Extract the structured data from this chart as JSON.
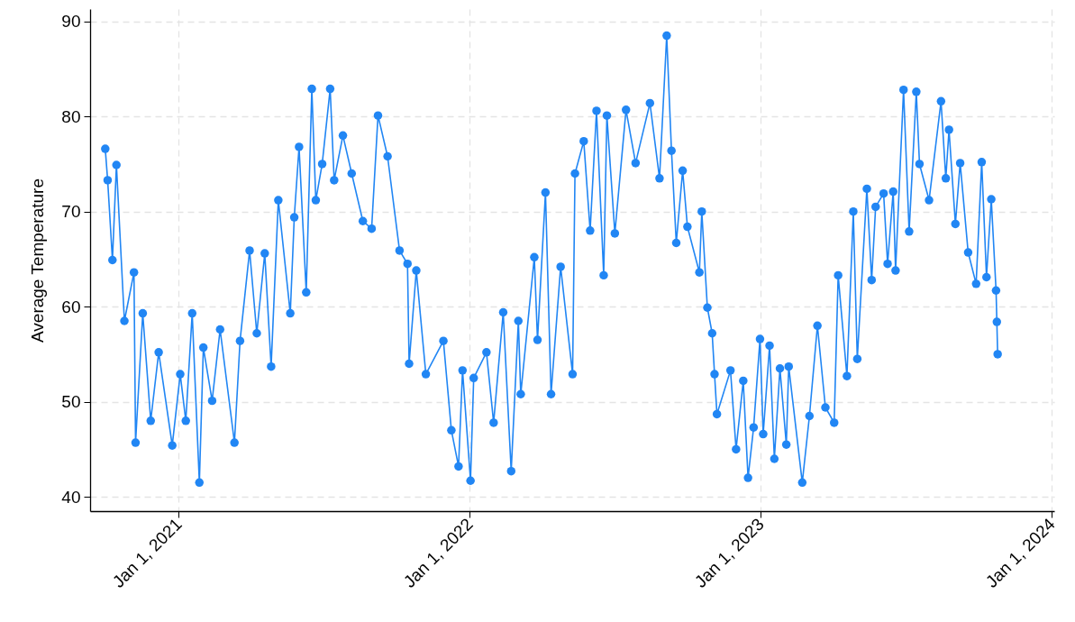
{
  "chart_data": {
    "type": "line",
    "ylabel": "Average Temperature",
    "x": [
      "2020-10-01",
      "2020-10-04",
      "2020-10-10",
      "2020-10-15",
      "2020-10-25",
      "2020-11-06",
      "2020-11-08",
      "2020-11-17",
      "2020-11-27",
      "2020-12-07",
      "2020-12-24",
      "2021-01-03",
      "2021-01-10",
      "2021-01-18",
      "2021-01-27",
      "2021-02-01",
      "2021-02-12",
      "2021-02-22",
      "2021-03-12",
      "2021-03-19",
      "2021-03-31",
      "2021-04-09",
      "2021-04-19",
      "2021-04-27",
      "2021-05-06",
      "2021-05-21",
      "2021-05-26",
      "2021-06-01",
      "2021-06-10",
      "2021-06-17",
      "2021-06-22",
      "2021-06-30",
      "2021-07-10",
      "2021-07-15",
      "2021-07-26",
      "2021-08-06",
      "2021-08-20",
      "2021-08-31",
      "2021-09-08",
      "2021-09-20",
      "2021-10-05",
      "2021-10-15",
      "2021-10-17",
      "2021-10-26",
      "2021-11-07",
      "2021-11-29",
      "2021-12-09",
      "2021-12-18",
      "2021-12-23",
      "2022-01-02",
      "2022-01-06",
      "2022-01-22",
      "2022-01-31",
      "2022-02-12",
      "2022-02-22",
      "2022-03-03",
      "2022-03-06",
      "2022-03-23",
      "2022-03-27",
      "2022-04-06",
      "2022-04-13",
      "2022-04-25",
      "2022-05-10",
      "2022-05-13",
      "2022-05-24",
      "2022-06-01",
      "2022-06-09",
      "2022-06-18",
      "2022-06-22",
      "2022-07-02",
      "2022-07-16",
      "2022-07-28",
      "2022-08-15",
      "2022-08-27",
      "2022-09-05",
      "2022-09-11",
      "2022-09-17",
      "2022-09-25",
      "2022-10-01",
      "2022-10-16",
      "2022-10-19",
      "2022-10-26",
      "2022-11-01",
      "2022-11-04",
      "2022-11-07",
      "2022-11-24",
      "2022-12-01",
      "2022-12-10",
      "2022-12-16",
      "2022-12-23",
      "2022-12-31",
      "2023-01-04",
      "2023-01-12",
      "2023-01-18",
      "2023-01-25",
      "2023-02-02",
      "2023-02-05",
      "2023-02-22",
      "2023-03-03",
      "2023-03-13",
      "2023-03-23",
      "2023-04-03",
      "2023-04-08",
      "2023-04-19",
      "2023-04-27",
      "2023-05-02",
      "2023-05-14",
      "2023-05-20",
      "2023-05-25",
      "2023-06-04",
      "2023-06-09",
      "2023-06-16",
      "2023-06-19",
      "2023-06-29",
      "2023-07-06",
      "2023-07-15",
      "2023-07-19",
      "2023-07-31",
      "2023-08-15",
      "2023-08-21",
      "2023-08-25",
      "2023-09-02",
      "2023-09-08",
      "2023-09-18",
      "2023-09-28",
      "2023-10-05",
      "2023-10-11",
      "2023-10-17",
      "2023-10-23",
      "2023-10-24",
      "2023-10-25"
    ],
    "series": [
      {
        "color": "#2186f4",
        "values": [
          76.6,
          73.3,
          64.9,
          74.9,
          58.5,
          63.6,
          45.7,
          59.3,
          48,
          55.2,
          45.4,
          52.9,
          48,
          59.3,
          41.5,
          55.7,
          50.1,
          57.6,
          45.7,
          56.4,
          65.9,
          57.2,
          65.6,
          53.7,
          71.2,
          59.3,
          69.4,
          76.8,
          61.5,
          82.9,
          71.2,
          75,
          82.9,
          73.3,
          78,
          74,
          69,
          68.2,
          80.1,
          75.8,
          65.9,
          64.5,
          54,
          63.8,
          52.9,
          56.4,
          47,
          43.2,
          53.3,
          41.7,
          52.5,
          55.2,
          47.8,
          59.4,
          42.7,
          58.5,
          50.8,
          65.2,
          56.5,
          72,
          50.8,
          64.2,
          52.9,
          74,
          77.4,
          68,
          80.6,
          63.3,
          80.1,
          67.7,
          80.7,
          75.1,
          81.4,
          73.5,
          88.5,
          76.4,
          66.7,
          74.3,
          68.4,
          63.6,
          70,
          59.9,
          57.2,
          52.9,
          48.7,
          53.3,
          45,
          52.2,
          42,
          47.3,
          56.6,
          46.6,
          55.9,
          44,
          53.5,
          45.5,
          53.7,
          41.5,
          48.5,
          58,
          49.4,
          47.8,
          63.3,
          52.7,
          70,
          54.5,
          72.4,
          62.8,
          70.5,
          71.9,
          64.5,
          72.1,
          63.8,
          82.8,
          67.9,
          82.6,
          75,
          71.2,
          81.6,
          73.5,
          78.6,
          68.7,
          75.1,
          65.7,
          62.4,
          75.2,
          63.1,
          71.3,
          61.7,
          58.4,
          55
        ]
      }
    ],
    "xlim": [
      "2020-09-12",
      "2024-01-04"
    ],
    "xticks": [
      {
        "value": "2021-01-01",
        "label": "Jan 1, 2021"
      },
      {
        "value": "2022-01-01",
        "label": "Jan 1, 2022"
      },
      {
        "value": "2023-01-01",
        "label": "Jan 1, 2023"
      },
      {
        "value": "2024-01-01",
        "label": "Jan 1, 2024"
      }
    ],
    "ylim": [
      38.5,
      91.3
    ],
    "yticks": [
      40,
      50,
      60,
      70,
      80,
      90
    ],
    "grid": true,
    "marker": "circle",
    "line_style": "solid"
  }
}
